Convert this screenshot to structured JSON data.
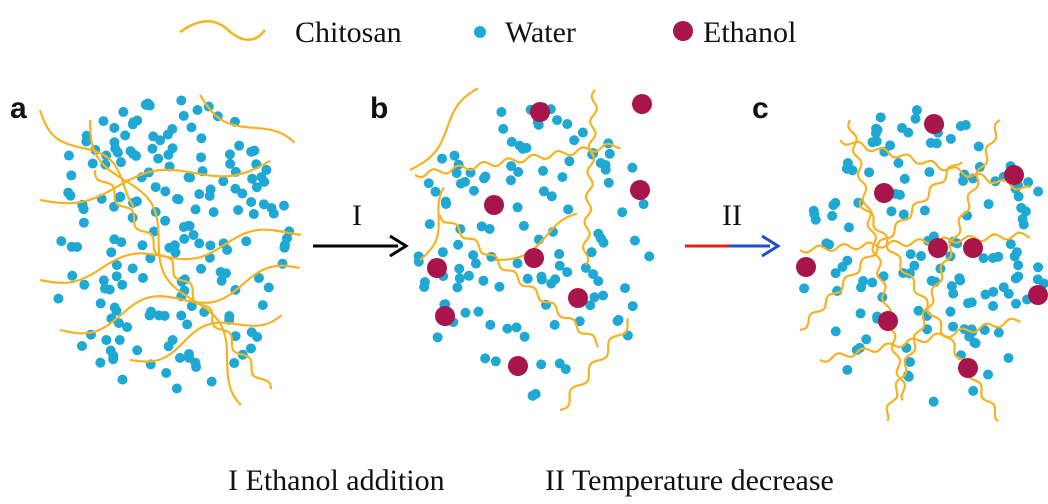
{
  "legend": {
    "chitosan": "Chitosan",
    "water": "Water",
    "ethanol": "Ethanol"
  },
  "panels": [
    "a",
    "b",
    "c"
  ],
  "steps": [
    {
      "symbol": "I",
      "caption": "I Ethanol addition"
    },
    {
      "symbol": "II",
      "caption": "II Temperature decrease"
    }
  ]
}
